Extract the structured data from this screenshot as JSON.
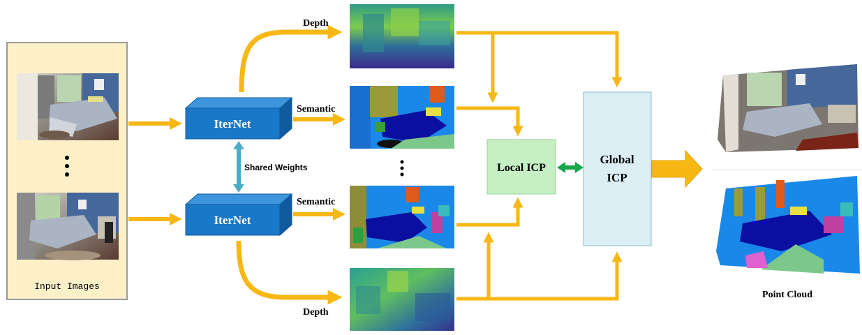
{
  "input_panel": {
    "caption": "Input Images"
  },
  "network": {
    "top_label": "IterNet",
    "bottom_label": "IterNet",
    "shared_label": "Shared Weights"
  },
  "outputs": {
    "depth_top": "Depth",
    "semantic_top": "Semantic",
    "semantic_bottom": "Semantic",
    "depth_bottom": "Depth"
  },
  "fusion": {
    "local_label": "Local ICP",
    "global_line1": "Global",
    "global_line2": "ICP"
  },
  "result": {
    "caption": "Point Cloud"
  },
  "colors": {
    "arrow": "#f7b715",
    "arrow_edge": "#d99a00",
    "panel_bg": "#fdf0c8",
    "panel_border": "#9a9a9a",
    "iternet_face": "#1a78c8",
    "iternet_top": "#3d95dc",
    "iternet_side": "#0f5b9e",
    "shared_arrow": "#4bacc6",
    "local_icp_bg": "#c4f0c4",
    "global_icp_bg": "#dbeef4",
    "double_arrow": "#17a74a",
    "depth_low": "#3b2a8a",
    "depth_mid": "#2a8c8c",
    "depth_high": "#c6e03a",
    "sem_blue": "#1a88e8",
    "sem_navy": "#0b0fa0",
    "sem_olive": "#9a9a3a",
    "sem_orange": "#e05a1a"
  }
}
